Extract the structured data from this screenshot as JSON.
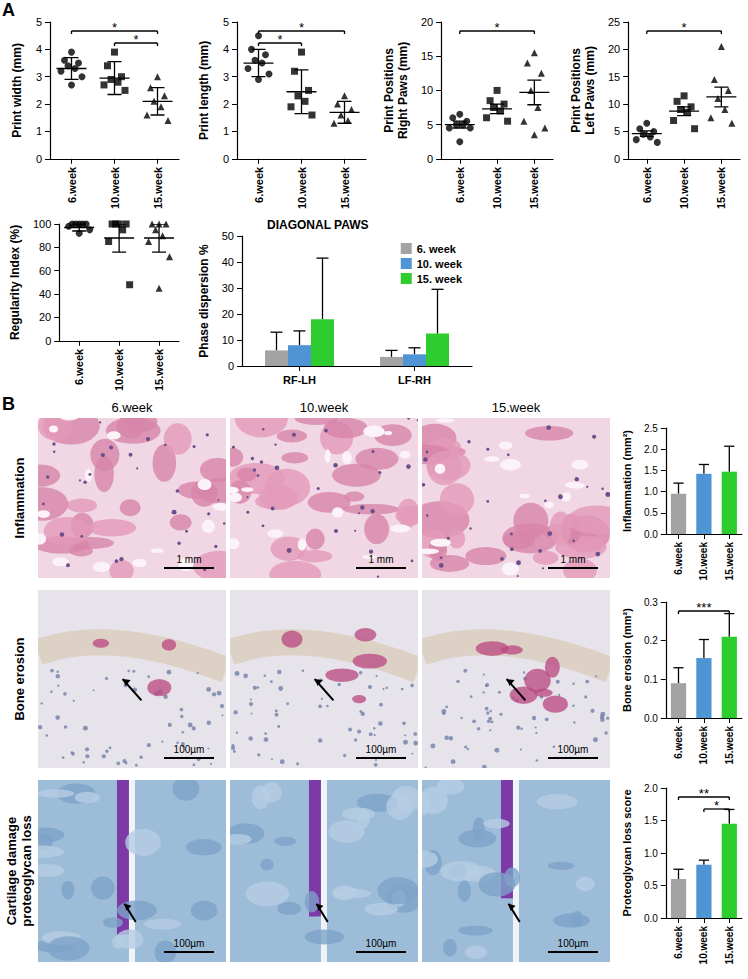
{
  "panel_labels": [
    "A",
    "B"
  ],
  "chart_data": [
    {
      "type": "dot",
      "y_label": "Print width (mm)",
      "ylim": [
        0,
        5
      ],
      "yticks": [
        0,
        1,
        2,
        3,
        4,
        5
      ],
      "grid": false,
      "series": [
        {
          "category": "6.week",
          "marker": "circle",
          "values": [
            3.9,
            3.6,
            3.5,
            3.4,
            3.3,
            3.2,
            3.0,
            2.7
          ],
          "mean": 3.3,
          "error": 0.4
        },
        {
          "category": "10.week",
          "marker": "square",
          "values": [
            3.9,
            3.4,
            3.0,
            2.9,
            2.8,
            2.7,
            2.5
          ],
          "mean": 2.95,
          "error": 0.6
        },
        {
          "category": "15.week",
          "marker": "triangle",
          "values": [
            3.0,
            2.6,
            2.3,
            2.1,
            1.9,
            1.6,
            1.4
          ],
          "mean": 2.1,
          "error": 0.5
        }
      ],
      "significance": [
        {
          "from": "6.week",
          "to": "15.week",
          "label": "*"
        },
        {
          "from": "10.week",
          "to": "15.week",
          "label": "*"
        }
      ]
    },
    {
      "type": "dot",
      "y_label": "Print length (mm)",
      "ylim": [
        0,
        5
      ],
      "yticks": [
        0,
        1,
        2,
        3,
        4,
        5
      ],
      "grid": false,
      "series": [
        {
          "category": "6.week",
          "marker": "circle",
          "values": [
            4.5,
            4.0,
            3.8,
            3.6,
            3.5,
            3.3,
            3.1,
            2.9
          ],
          "mean": 3.5,
          "error": 0.5
        },
        {
          "category": "10.week",
          "marker": "square",
          "values": [
            3.9,
            3.2,
            2.5,
            2.3,
            2.1,
            1.9,
            1.6
          ],
          "mean": 2.45,
          "error": 0.8
        },
        {
          "category": "15.week",
          "marker": "triangle",
          "values": [
            2.3,
            2.0,
            1.8,
            1.6,
            1.4,
            1.3
          ],
          "mean": 1.7,
          "error": 0.4
        }
      ],
      "significance": [
        {
          "from": "6.week",
          "to": "15.week",
          "label": "*"
        },
        {
          "from": "6.week",
          "to": "10.week",
          "label": "*"
        }
      ]
    },
    {
      "type": "dot",
      "y_label": "Print Positions\nRight Paws (mm)",
      "ylim": [
        0,
        20
      ],
      "yticks": [
        0,
        5,
        10,
        15,
        20
      ],
      "grid": false,
      "series": [
        {
          "category": "6.week",
          "marker": "circle",
          "values": [
            6.5,
            6.0,
            5.5,
            5.0,
            5.0,
            4.5,
            4.5,
            2.5
          ],
          "mean": 5.0,
          "error": 0.5
        },
        {
          "category": "10.week",
          "marker": "square",
          "values": [
            10.0,
            8.5,
            8.0,
            7.5,
            7.0,
            6.0,
            5.5
          ],
          "mean": 7.3,
          "error": 0.7
        },
        {
          "category": "15.week",
          "marker": "triangle",
          "values": [
            15.5,
            14.0,
            12.5,
            10.0,
            7.5,
            5.5,
            4.5,
            3.5
          ],
          "mean": 9.7,
          "error": 1.8
        }
      ],
      "significance": [
        {
          "from": "6.week",
          "to": "15.week",
          "label": "*"
        }
      ]
    },
    {
      "type": "dot",
      "y_label": "Print Positions\nLeft Paws (mm)",
      "ylim": [
        0,
        25
      ],
      "yticks": [
        0,
        5,
        10,
        15,
        20,
        25
      ],
      "grid": false,
      "series": [
        {
          "category": "6.week",
          "marker": "circle",
          "values": [
            6.5,
            5.5,
            5.0,
            4.5,
            4.0,
            3.5,
            3.0
          ],
          "mean": 4.6,
          "error": 0.5
        },
        {
          "category": "10.week",
          "marker": "square",
          "values": [
            11.5,
            10.5,
            9.5,
            9.0,
            8.5,
            7.0,
            5.5
          ],
          "mean": 8.7,
          "error": 0.8
        },
        {
          "category": "15.week",
          "marker": "triangle",
          "values": [
            20.5,
            14.5,
            12.5,
            11.0,
            9.0,
            7.5,
            6.5
          ],
          "mean": 11.3,
          "error": 1.8
        }
      ],
      "significance": [
        {
          "from": "6.week",
          "to": "15.week",
          "label": "*"
        }
      ]
    },
    {
      "type": "dot",
      "y_label": "Regularity Index (%)",
      "ylim": [
        0,
        100
      ],
      "yticks": [
        0,
        20,
        40,
        60,
        80,
        100
      ],
      "grid": false,
      "series": [
        {
          "category": "6.week",
          "marker": "circle",
          "values": [
            100,
            100,
            100,
            100,
            100,
            98,
            95,
            92
          ],
          "mean": 97,
          "error": 3
        },
        {
          "category": "10.week",
          "marker": "square",
          "values": [
            100,
            100,
            100,
            100,
            95,
            85,
            48
          ],
          "mean": 88,
          "error": 12
        },
        {
          "category": "15.week",
          "marker": "triangle",
          "values": [
            100,
            100,
            100,
            95,
            90,
            85,
            72,
            45
          ],
          "mean": 88,
          "error": 12
        }
      ],
      "significance": []
    },
    {
      "type": "bar",
      "title": "DIAGONAL PAWS",
      "y_label": "Phase dispersion %",
      "categories": [
        "RF-LH",
        "LF-RH"
      ],
      "ylim": [
        0,
        50
      ],
      "yticks": [
        0,
        10,
        20,
        30,
        40,
        50
      ],
      "grid": false,
      "legend": "upper right",
      "series": [
        {
          "name": "6. week",
          "color": "#a3a3a3",
          "values": [
            6,
            3.5
          ],
          "error": [
            7,
            2.5
          ]
        },
        {
          "name": "10. week",
          "color": "#4f94d4",
          "values": [
            8,
            4.5
          ],
          "error": [
            5.5,
            2.5
          ]
        },
        {
          "name": "15. week",
          "color": "#2ecc2e",
          "values": [
            18,
            12.5
          ],
          "error": [
            23.5,
            17
          ]
        }
      ]
    },
    {
      "type": "bar",
      "y_label": "Inflammation (mm²)",
      "categories": [
        "6.week",
        "10.week",
        "15.week"
      ],
      "values": [
        0.95,
        1.42,
        1.47
      ],
      "error": [
        0.25,
        0.22,
        0.6
      ],
      "colors": [
        "#a3a3a3",
        "#4f94d4",
        "#2ecc2e"
      ],
      "ylim": [
        0,
        2.5
      ],
      "yticks": [
        {
          "value": 0,
          "label": "0.0"
        },
        0.5,
        {
          "value": 1,
          "label": "1.0"
        },
        1.5,
        {
          "value": 2,
          "label": "2.0"
        },
        2.5
      ],
      "grid": false,
      "significance": []
    },
    {
      "type": "bar",
      "y_label": "Bone erosion (mm²)",
      "categories": [
        "6.week",
        "10.week",
        "15.week"
      ],
      "values": [
        0.09,
        0.155,
        0.21
      ],
      "error": [
        0.04,
        0.048,
        0.06
      ],
      "colors": [
        "#a3a3a3",
        "#4f94d4",
        "#2ecc2e"
      ],
      "ylim": [
        0,
        0.3
      ],
      "yticks": [
        {
          "value": 0,
          "label": "0.0"
        },
        0.1,
        0.2,
        0.3
      ],
      "grid": false,
      "significance": [
        {
          "from": "6.week",
          "to": "15.week",
          "label": "***"
        }
      ]
    },
    {
      "type": "bar",
      "y_label": "Proteoglycan loss score",
      "categories": [
        "6.week",
        "10.week",
        "15.week"
      ],
      "values": [
        0.6,
        0.82,
        1.45
      ],
      "error": [
        0.15,
        0.07,
        0.22
      ],
      "colors": [
        "#a3a3a3",
        "#4f94d4",
        "#2ecc2e"
      ],
      "ylim": [
        0,
        2.0
      ],
      "yticks": [
        {
          "value": 0,
          "label": "0.0"
        },
        0.5,
        {
          "value": 1,
          "label": "1.0"
        },
        1.5,
        {
          "value": 2,
          "label": "2.0"
        }
      ],
      "grid": false,
      "significance": [
        {
          "from": "6.week",
          "to": "15.week",
          "label": "**"
        },
        {
          "from": "10.week",
          "to": "15.week",
          "label": "*"
        }
      ]
    }
  ],
  "histology": {
    "columns": [
      "6.week",
      "10.week",
      "15.week"
    ],
    "rows": [
      {
        "label": [
          "Inflammation"
        ],
        "scale_bar": "1 mm"
      },
      {
        "label": [
          "Bone erosion"
        ],
        "scale_bar": "100µm"
      },
      {
        "label": [
          "Cartilage  damage",
          "proteoglycan loss"
        ],
        "scale_bar": "100µm"
      }
    ]
  }
}
